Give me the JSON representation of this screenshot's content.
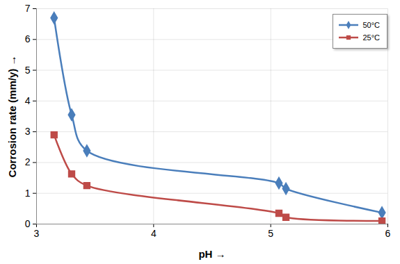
{
  "chart_data": {
    "type": "line",
    "x_label": "pH",
    "y_label": "Corrosion rate (mm/y)",
    "series": [
      {
        "name": "50°C",
        "color": "#4a7ebb",
        "marker": "diamond",
        "line_style": "solid",
        "x": [
          3.15,
          3.3,
          3.43,
          5.07,
          5.13,
          5.95
        ],
        "values": [
          6.7,
          3.55,
          2.38,
          1.33,
          1.15,
          0.37
        ]
      },
      {
        "name": "25°C",
        "color": "#be4b48",
        "marker": "square",
        "line_style": "solid",
        "x": [
          3.15,
          3.3,
          3.43,
          5.07,
          5.13,
          5.95
        ],
        "values": [
          2.9,
          1.63,
          1.25,
          0.35,
          0.22,
          0.1
        ]
      }
    ],
    "xlim": [
      3,
      6
    ],
    "xticks": [
      3,
      4,
      5,
      6
    ],
    "ylim": [
      0,
      7
    ],
    "yticks": [
      0,
      1,
      2,
      3,
      4,
      5,
      6,
      7
    ],
    "grid": true,
    "legend": "top-right"
  }
}
